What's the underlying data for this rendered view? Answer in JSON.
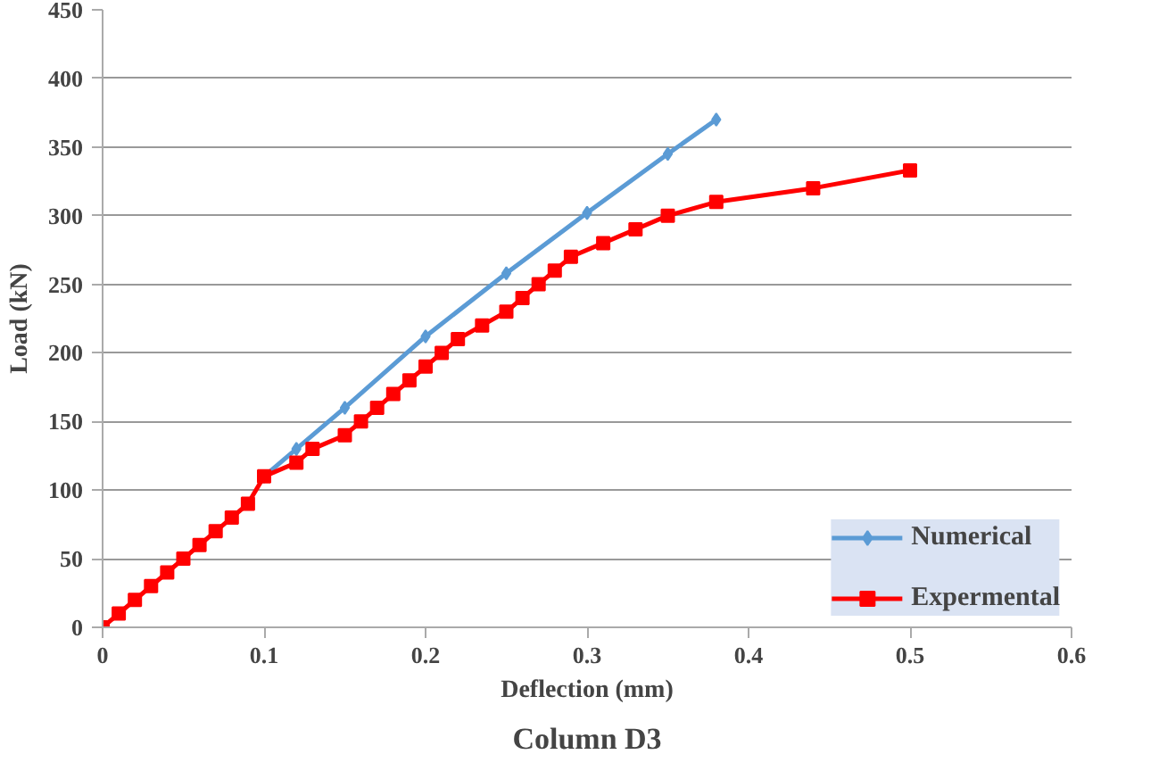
{
  "chart_data": {
    "type": "line",
    "title": "Column D3",
    "xlabel": "Deflection (mm)",
    "ylabel": "Load (kN)",
    "xlim": [
      0,
      0.6
    ],
    "xticks": [
      0,
      0.1,
      0.2,
      0.3,
      0.4,
      0.5,
      0.6
    ],
    "ylim": [
      0,
      450
    ],
    "yticks": [
      0,
      50,
      100,
      150,
      200,
      250,
      300,
      350,
      400,
      450
    ],
    "grid": "y",
    "legend": "bottom right",
    "line_style": "solid",
    "series": [
      {
        "name": "Numerical",
        "color": "#5b9bd5",
        "marker": "diamond",
        "x": [
          0.1,
          0.12,
          0.15,
          0.2,
          0.25,
          0.3,
          0.35,
          0.38
        ],
        "values": [
          110,
          130,
          160,
          212,
          258,
          302,
          345,
          370
        ]
      },
      {
        "name": "Expermental",
        "color": "#ff0000",
        "marker": "square",
        "x": [
          0,
          0.01,
          0.02,
          0.03,
          0.04,
          0.05,
          0.06,
          0.07,
          0.08,
          0.09,
          0.1,
          0.12,
          0.13,
          0.15,
          0.16,
          0.17,
          0.18,
          0.19,
          0.2,
          0.21,
          0.22,
          0.235,
          0.25,
          0.26,
          0.27,
          0.28,
          0.29,
          0.31,
          0.33,
          0.35,
          0.38,
          0.44,
          0.5
        ],
        "values": [
          0,
          10,
          20,
          30,
          40,
          50,
          60,
          70,
          80,
          90,
          110,
          120,
          130,
          140,
          150,
          160,
          170,
          180,
          190,
          200,
          210,
          220,
          230,
          240,
          250,
          260,
          270,
          280,
          290,
          300,
          310,
          320,
          333
        ]
      }
    ]
  }
}
